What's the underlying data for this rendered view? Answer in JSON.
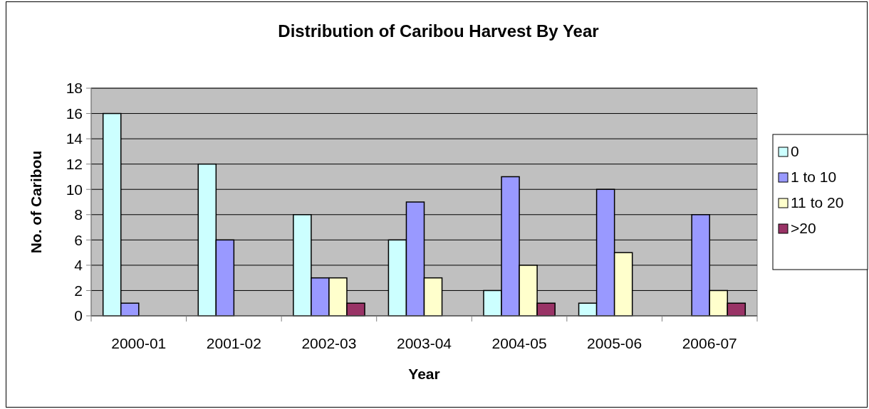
{
  "chart_data": {
    "type": "bar",
    "title": "Distribution of Caribou Harvest By Year",
    "xlabel": "Year",
    "ylabel": "No. of Caribou",
    "categories": [
      "2000-01",
      "2001-02",
      "2002-03",
      "2003-04",
      "2004-05",
      "2005-06",
      "2006-07"
    ],
    "series": [
      {
        "name": "0",
        "color": "#ccffff",
        "values": [
          16,
          12,
          8,
          6,
          2,
          1,
          0
        ]
      },
      {
        "name": "1 to 10",
        "color": "#9999ff",
        "values": [
          1,
          6,
          3,
          9,
          11,
          10,
          8
        ]
      },
      {
        "name": "11 to 20",
        "color": "#ffffcc",
        "values": [
          0,
          0,
          3,
          3,
          4,
          5,
          2
        ]
      },
      {
        "name": ">20",
        "color": "#993366",
        "values": [
          0,
          0,
          1,
          0,
          1,
          0,
          1
        ]
      }
    ],
    "ylim": [
      0,
      18
    ],
    "yticks": [
      0,
      2,
      4,
      6,
      8,
      10,
      12,
      14,
      16,
      18
    ],
    "grid": "y",
    "legend": "right"
  }
}
